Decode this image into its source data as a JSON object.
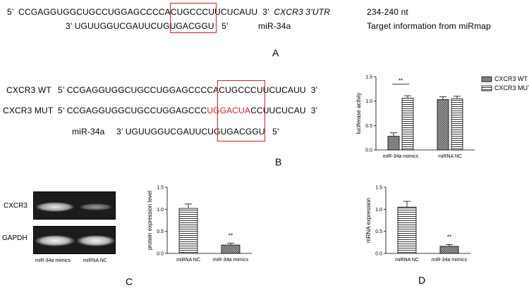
{
  "panel_a": {
    "utr_prefix": "5’",
    "utr_part1": "CCGAGGUGGCUGCCUGGAGCCC",
    "utr_site": "CACUGCC",
    "utr_part2": "CUUCUCAUU",
    "utr_suffix": "3’",
    "utr_label": "CXCR3 3’UTR",
    "position": "234-240 nt",
    "mir_prefix": "3’",
    "mir_part1": "UGUUGGUCGAUUCU",
    "mir_site": "GUGACGG",
    "mir_part2": "U",
    "mir_suffix": "5’",
    "mir_label": "miR-34a",
    "source_note": "Target information from miRmap",
    "letter": "A"
  },
  "panel_b": {
    "wt_label": "CXCR3 WT",
    "wt_prefix": "5’",
    "wt_part1": "CCGAGGUGGCUGCCUGGAGCCC",
    "wt_site": "CACUGCC",
    "wt_part2": "CUUCUCAUU",
    "wt_suffix": "3’",
    "mut_label": "CXCR3 MUT",
    "mut_prefix": "5’",
    "mut_part1": "CCGAGGUGGCUGCCUGGAGCCC",
    "mut_site": "UGGACUA",
    "mut_part2": "CCUUCUCAU",
    "mut_suffix": "3’",
    "mir_label": "miR-34a",
    "mir_prefix": "3’",
    "mir_part1": "UGUUGGUCGAUUCU",
    "mir_site": "GUGACGG",
    "mir_part2": "U",
    "mir_suffix": "5’",
    "letter": "B"
  },
  "panel_c": {
    "blot_labels": [
      "CXCR3",
      "GAPDH"
    ],
    "lane_labels": [
      "miR-34a mimics",
      "miRNA NC"
    ],
    "letter": "C"
  },
  "panel_d": {
    "letter": "D"
  },
  "colors": {
    "highlight": "#e0201b",
    "bar_outline": "#000000"
  },
  "chart_data": [
    {
      "id": "luciferase",
      "type": "bar",
      "ylabel": "luciferase activiy",
      "categories": [
        "miR-34a mimics",
        "miRNA NC"
      ],
      "series": [
        {
          "name": "CXCR3 WT",
          "pattern": "crosshatch",
          "values": [
            0.28,
            1.03
          ],
          "errors": [
            0.07,
            0.06
          ]
        },
        {
          "name": "CXCR3 MUT",
          "pattern": "horizontal-lines",
          "values": [
            1.06,
            1.05
          ],
          "errors": [
            0.05,
            0.05
          ]
        }
      ],
      "ylim": [
        0,
        1.5
      ],
      "yticks": [
        "0.0",
        "0.5",
        "1.0",
        "1.5"
      ],
      "yticks_values": [
        0,
        0.5,
        1.0,
        1.5
      ],
      "legend": "top-right",
      "significance": [
        {
          "text": "**",
          "category": "miR-34a mimics"
        }
      ]
    },
    {
      "id": "protein",
      "type": "bar",
      "ylabel": "protein expression level",
      "categories": [
        "miRNA NC",
        "miR-34a mimics"
      ],
      "values": [
        1.02,
        0.19
      ],
      "errors": [
        0.1,
        0.04
      ],
      "patterns": [
        "horizontal-lines",
        "crosshatch"
      ],
      "ylim": [
        0,
        1.5
      ],
      "yticks": [
        "0.0",
        "0.5",
        "1.0",
        "1.5"
      ],
      "yticks_values": [
        0,
        0.5,
        1.0,
        1.5
      ],
      "significance": [
        {
          "text": "**",
          "category": "miR-34a mimics"
        }
      ]
    },
    {
      "id": "mrna",
      "type": "bar",
      "ylabel": "mRNA expression",
      "categories": [
        "miRNA NC",
        "miR-34a mimics"
      ],
      "values": [
        1.05,
        0.16
      ],
      "errors": [
        0.13,
        0.04
      ],
      "patterns": [
        "horizontal-lines",
        "crosshatch"
      ],
      "ylim": [
        0,
        1.5
      ],
      "yticks": [
        "0.0",
        "0.5",
        "1.0",
        "1.5"
      ],
      "yticks_values": [
        0,
        0.5,
        1.0,
        1.5
      ],
      "significance": [
        {
          "text": "**",
          "category": "miR-34a mimics"
        }
      ]
    }
  ]
}
